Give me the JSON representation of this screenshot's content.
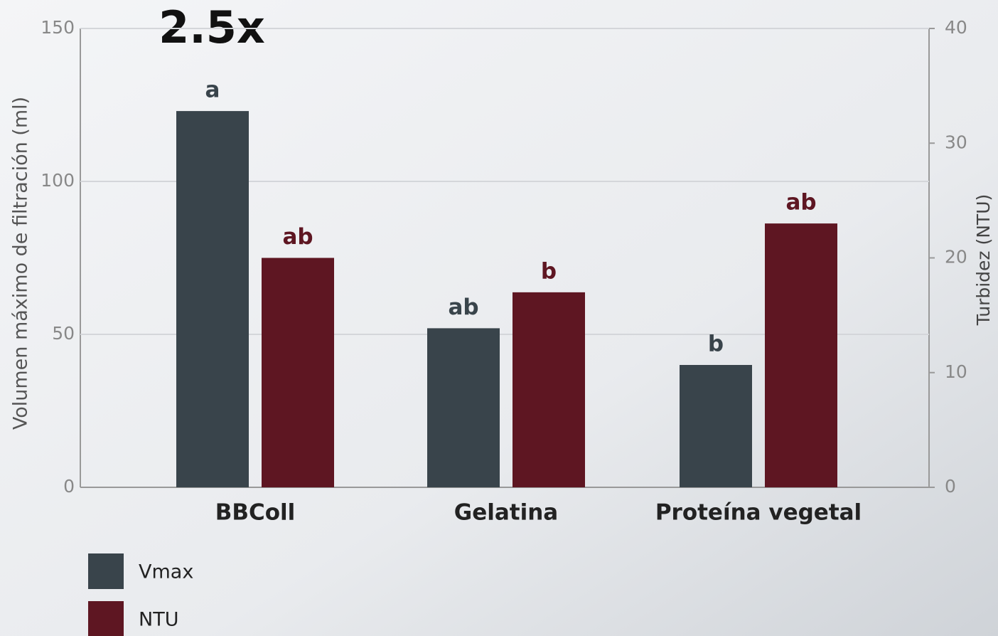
{
  "chart_data": {
    "type": "bar",
    "annotation": "2.5x",
    "ylabel": "Volumen máximo de filtración (ml)",
    "y2label": "Turbidez (NTU)",
    "categories": [
      "BBColl",
      "Gelatina",
      "Proteína vegetal"
    ],
    "series": [
      {
        "name": "Vmax",
        "color": "#39444b",
        "values": [
          123,
          52,
          40
        ],
        "significance": [
          "a",
          "ab",
          "b"
        ]
      },
      {
        "name": "NTU",
        "color": "#5e1622",
        "axis": "y2",
        "values": [
          20,
          17,
          23
        ],
        "significance": [
          "ab",
          "b",
          "ab"
        ]
      }
    ],
    "ylim": [
      0,
      150
    ],
    "yticks": [
      0,
      50,
      100,
      150
    ],
    "y2lim": [
      0,
      40
    ],
    "y2ticks": [
      0,
      10,
      20,
      30,
      40
    ],
    "grid": true,
    "legend": "bottom-left"
  }
}
